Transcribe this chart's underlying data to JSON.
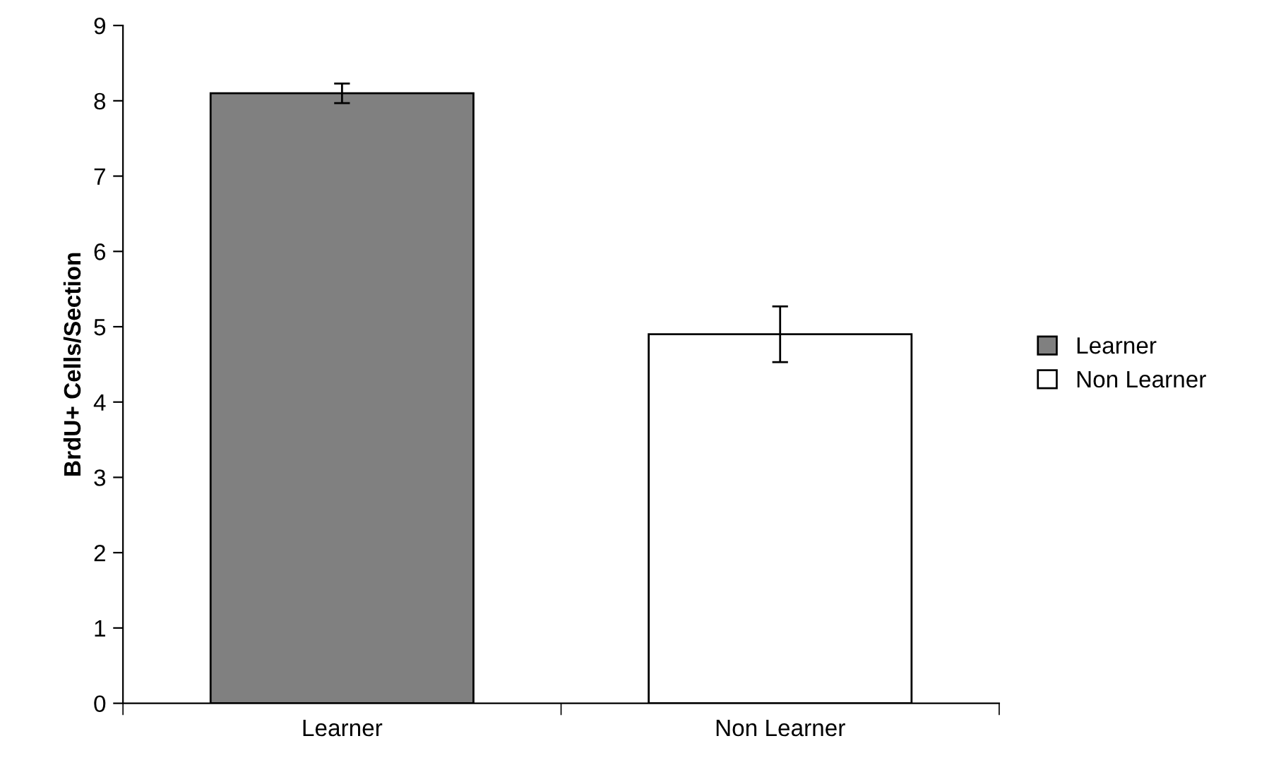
{
  "chart_data": {
    "type": "bar",
    "ylabel": "BrdU+ Cells/Section",
    "categories": [
      "Learner",
      "Non Learner"
    ],
    "series": [
      {
        "name": "Learner",
        "color": "#808080",
        "values": [
          8.1,
          null
        ],
        "errors": [
          0.13,
          null
        ]
      },
      {
        "name": "Non Learner",
        "color": "#ffffff",
        "values": [
          null,
          4.9
        ],
        "errors": [
          null,
          0.37
        ]
      }
    ],
    "ylim": [
      0,
      9
    ],
    "yticks": [
      0,
      1,
      2,
      3,
      4,
      5,
      6,
      7,
      8,
      9
    ],
    "grid": false,
    "legend": "right"
  }
}
